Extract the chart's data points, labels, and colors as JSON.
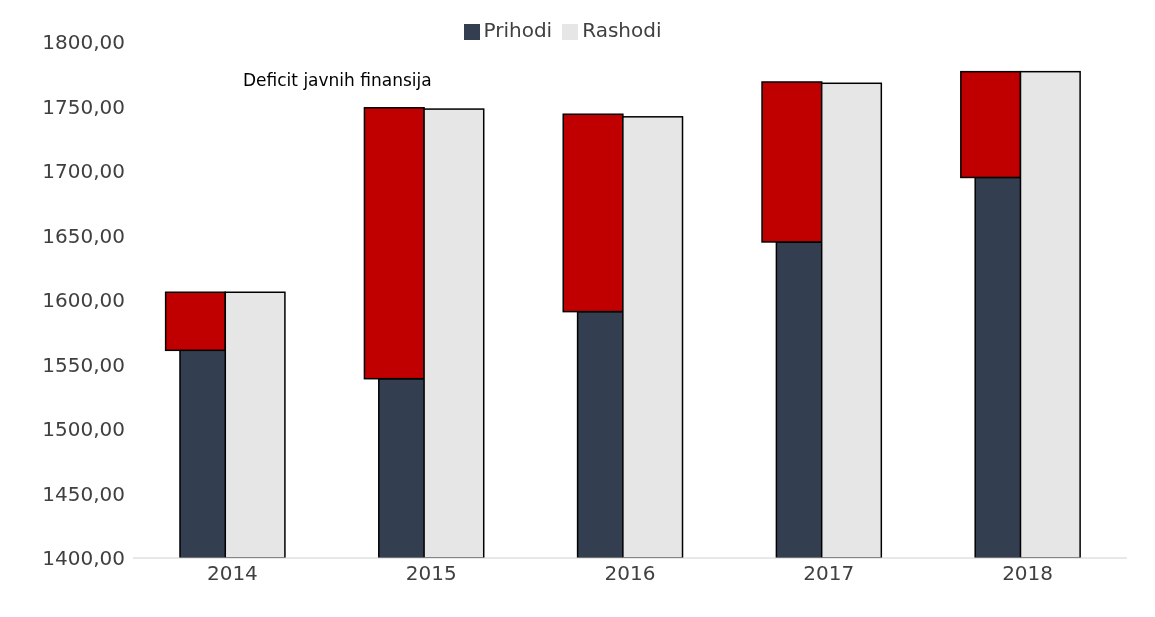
{
  "chart_data": {
    "type": "bar",
    "categories": [
      "2014",
      "2015",
      "2016",
      "2017",
      "2018"
    ],
    "series": [
      {
        "name": "Prihodi",
        "color": "#333f50",
        "values": [
          1561,
          1539,
          1591,
          1645,
          1695
        ]
      },
      {
        "color": "#c00000",
        "values": [
          45,
          210,
          153,
          124,
          82
        ],
        "base": [
          1561,
          1539,
          1591,
          1645,
          1695
        ]
      },
      {
        "name": "Rashodi",
        "color": "#e7e6e6",
        "values": [
          1606,
          1748,
          1742,
          1768,
          1777
        ]
      }
    ],
    "ylim": [
      1400,
      1800
    ],
    "yticks": [
      {
        "value": 1400,
        "label": "1400,00"
      },
      {
        "value": 1450,
        "label": "1450,00"
      },
      {
        "value": 1500,
        "label": "1500,00"
      },
      {
        "value": 1550,
        "label": "1550,00"
      },
      {
        "value": 1600,
        "label": "1600,00"
      },
      {
        "value": 1650,
        "label": "1650,00"
      },
      {
        "value": 1700,
        "label": "1700,00"
      },
      {
        "value": 1750,
        "label": "1750,00"
      },
      {
        "value": 1800,
        "label": "1800,00"
      }
    ],
    "annotations": [
      "Deficit javnih finansija"
    ],
    "legend": "top",
    "grid": false
  }
}
